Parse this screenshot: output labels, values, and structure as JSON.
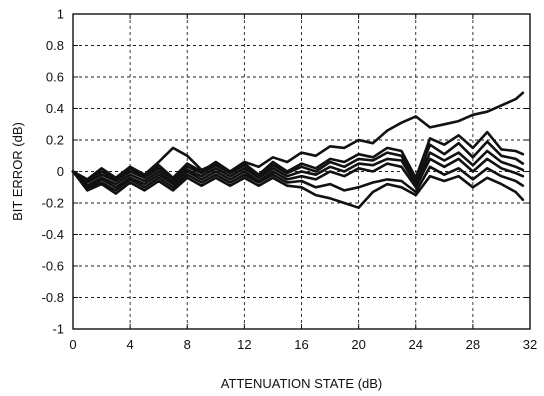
{
  "chart_data": {
    "type": "line",
    "title": "",
    "xlabel": "ATTENUATION STATE (dB)",
    "ylabel": "BIT ERROR (dB)",
    "xlim": [
      0,
      32
    ],
    "ylim": [
      -1,
      1
    ],
    "xticks": [
      "0",
      "4",
      "8",
      "12",
      "16",
      "20",
      "24",
      "28",
      "32"
    ],
    "yticks": [
      "1",
      "0.8",
      "0.6",
      "0.4",
      "0.2",
      "0",
      "-0.2",
      "-0.4",
      "-0.6",
      "-0.8",
      "-1"
    ],
    "grid": true,
    "legend": "none",
    "x": [
      0,
      1,
      2,
      3,
      4,
      5,
      6,
      7,
      8,
      9,
      10,
      11,
      12,
      13,
      14,
      15,
      16,
      17,
      18,
      19,
      20,
      21,
      22,
      23,
      24,
      25,
      26,
      27,
      28,
      29,
      30,
      31,
      31.5
    ],
    "series": [
      {
        "values": [
          0,
          -0.05,
          0.02,
          -0.04,
          0.03,
          -0.02,
          0.06,
          0.15,
          0.1,
          0.01,
          0.05,
          0,
          0.06,
          0.03,
          0.09,
          0.06,
          0.12,
          0.1,
          0.16,
          0.15,
          0.2,
          0.18,
          0.26,
          0.31,
          0.35,
          0.28,
          0.3,
          0.32,
          0.36,
          0.38,
          0.42,
          0.46,
          0.5
        ]
      },
      {
        "values": [
          0,
          -0.06,
          0,
          -0.05,
          0.02,
          -0.03,
          0.04,
          -0.04,
          0.05,
          0,
          0.06,
          0,
          0.05,
          -0.02,
          0.06,
          0,
          0.05,
          0.02,
          0.08,
          0.06,
          0.11,
          0.09,
          0.15,
          0.13,
          -0.04,
          0.21,
          0.17,
          0.23,
          0.15,
          0.25,
          0.14,
          0.13,
          0.11
        ]
      },
      {
        "values": [
          0,
          -0.07,
          -0.02,
          -0.06,
          0,
          -0.04,
          0.02,
          -0.05,
          0.03,
          -0.01,
          0.04,
          -0.01,
          0.04,
          -0.03,
          0.04,
          -0.01,
          0.03,
          0,
          0.06,
          0.03,
          0.08,
          0.07,
          0.12,
          0.1,
          -0.06,
          0.17,
          0.11,
          0.18,
          0.09,
          0.19,
          0.1,
          0.08,
          0.05
        ]
      },
      {
        "values": [
          0,
          -0.09,
          -0.04,
          -0.08,
          -0.02,
          -0.06,
          0,
          -0.07,
          0.01,
          -0.03,
          0.02,
          -0.03,
          0.02,
          -0.04,
          0.02,
          -0.03,
          0,
          -0.02,
          0.03,
          0,
          0.05,
          0.04,
          0.08,
          0.07,
          -0.08,
          0.12,
          0.07,
          0.12,
          0.04,
          0.13,
          0.06,
          0.03,
          0.01
        ]
      },
      {
        "values": [
          0,
          -0.1,
          -0.05,
          -0.1,
          -0.04,
          -0.08,
          -0.02,
          -0.08,
          0,
          -0.05,
          0,
          -0.05,
          0,
          -0.06,
          0,
          -0.05,
          -0.03,
          -0.05,
          0,
          -0.03,
          0.02,
          0,
          0.05,
          0.03,
          -0.1,
          0.08,
          0.03,
          0.08,
          0,
          0.08,
          0.02,
          -0.01,
          -0.03
        ]
      },
      {
        "values": [
          0,
          -0.11,
          -0.07,
          -0.12,
          -0.05,
          -0.1,
          -0.04,
          -0.1,
          -0.02,
          -0.07,
          -0.02,
          -0.07,
          -0.02,
          -0.07,
          -0.02,
          -0.07,
          -0.06,
          -0.1,
          -0.08,
          -0.12,
          -0.1,
          -0.07,
          -0.05,
          -0.06,
          -0.13,
          0.03,
          -0.02,
          0.02,
          -0.05,
          0.02,
          -0.03,
          -0.06,
          -0.09
        ]
      },
      {
        "values": [
          0,
          -0.12,
          -0.08,
          -0.14,
          -0.07,
          -0.12,
          -0.06,
          -0.12,
          -0.04,
          -0.09,
          -0.04,
          -0.09,
          -0.04,
          -0.09,
          -0.04,
          -0.09,
          -0.1,
          -0.15,
          -0.17,
          -0.2,
          -0.23,
          -0.13,
          -0.08,
          -0.1,
          -0.15,
          -0.03,
          -0.06,
          -0.03,
          -0.1,
          -0.04,
          -0.08,
          -0.13,
          -0.18
        ]
      }
    ],
    "line_color": "#111111"
  }
}
